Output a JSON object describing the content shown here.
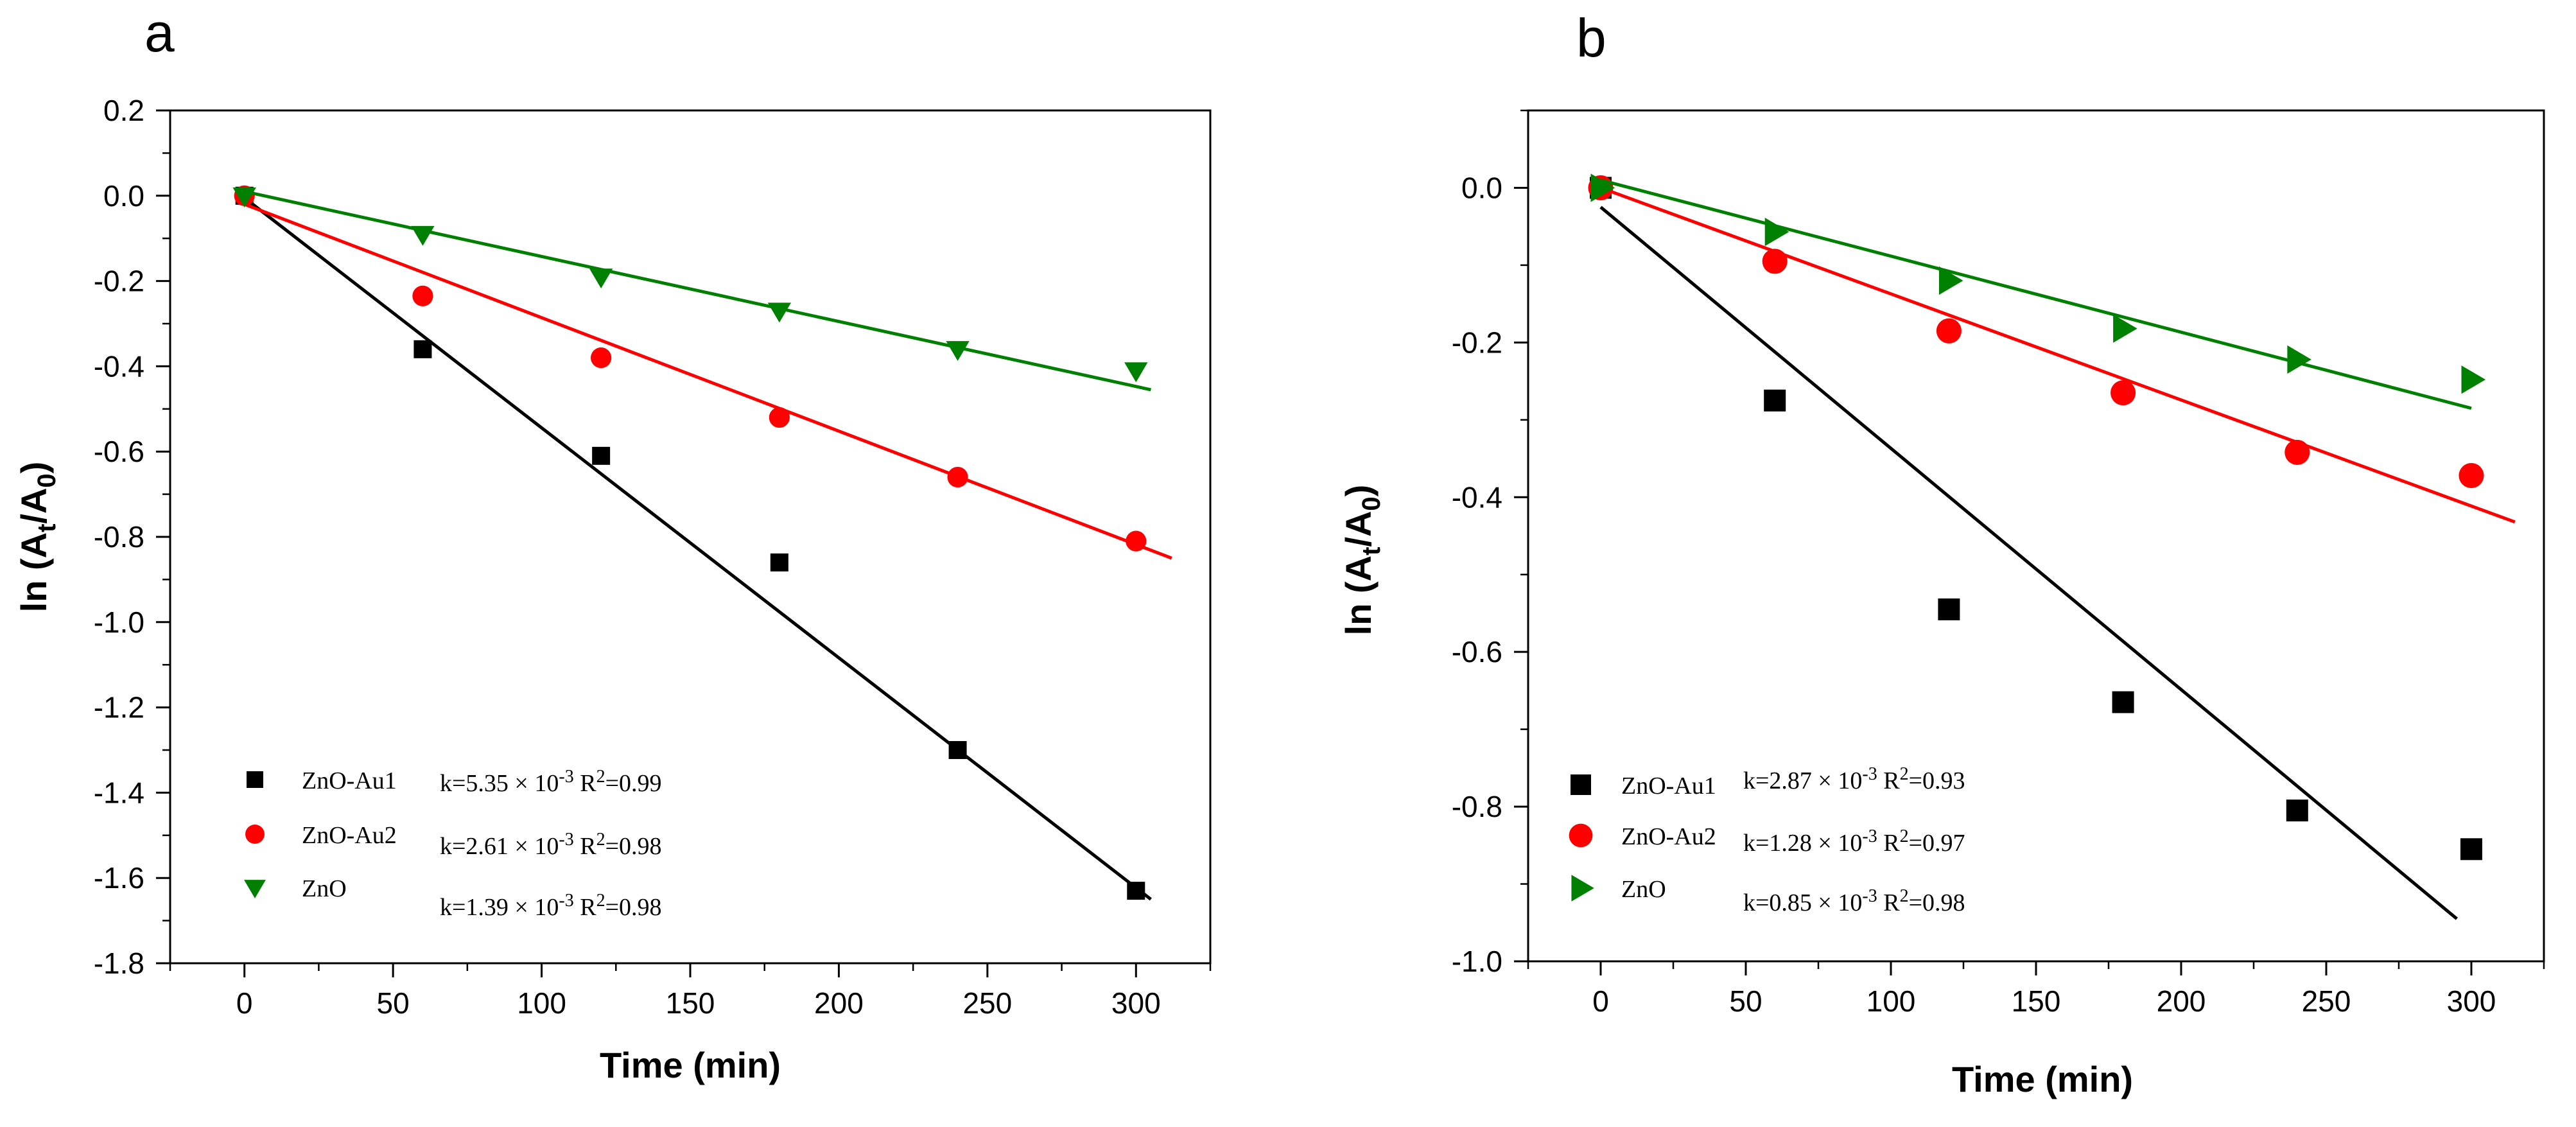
{
  "chart_data": [
    {
      "panel": "a",
      "type": "scatter",
      "xlabel": "Time (min)",
      "ylabel": "ln (A",
      "ylabel_sub1": "t",
      "ylabel_mid": "/A",
      "ylabel_sub2": "0",
      "ylabel_end": ")",
      "xlim": [
        -25,
        325
      ],
      "ylim": [
        -1.8,
        0.2
      ],
      "xticks": [
        0,
        50,
        100,
        150,
        200,
        250,
        300
      ],
      "yticks": [
        0.2,
        0.0,
        -0.2,
        -0.4,
        -0.6,
        -0.8,
        -1.0,
        -1.2,
        -1.4,
        -1.6,
        -1.8
      ],
      "ytick_labels": [
        "0.2",
        "0.0",
        "-0.2",
        "-0.4",
        "-0.6",
        "-0.8",
        "-1.0",
        "-1.2",
        "-1.4",
        "-1.6",
        "-1.8"
      ],
      "legend_position": "bottom-left",
      "series": [
        {
          "name": "ZnO-Au1",
          "marker": "square",
          "color": "#000000",
          "x": [
            0,
            60,
            120,
            180,
            240,
            300
          ],
          "y": [
            0.0,
            -0.36,
            -0.61,
            -0.86,
            -1.3,
            -1.63
          ],
          "fit": {
            "x": [
              0,
              305
            ],
            "y": [
              -0.005,
              -1.65
            ]
          },
          "stat_k": "k=5.35 × 10",
          "stat_exp": "-3",
          "stat_r": " R",
          "stat_r_exp": "2",
          "stat_end": "=0.99"
        },
        {
          "name": "ZnO-Au2",
          "marker": "circle",
          "color": "#ff0000",
          "x": [
            0,
            60,
            120,
            180,
            240,
            300
          ],
          "y": [
            0.0,
            -0.235,
            -0.38,
            -0.52,
            -0.66,
            -0.81
          ],
          "fit": {
            "x": [
              0,
              312
            ],
            "y": [
              -0.02,
              -0.85
            ]
          },
          "stat_k": "k=2.61 × 10",
          "stat_exp": "-3",
          "stat_r": " R",
          "stat_r_exp": "2",
          "stat_end": "=0.98"
        },
        {
          "name": "ZnO",
          "marker": "triangle-down",
          "color": "#008000",
          "x": [
            0,
            60,
            120,
            180,
            240,
            300
          ],
          "y": [
            0.0,
            -0.09,
            -0.19,
            -0.27,
            -0.36,
            -0.41
          ],
          "fit": {
            "x": [
              0,
              305
            ],
            "y": [
              0.01,
              -0.455
            ]
          },
          "stat_k": "k=1.39 × 10",
          "stat_exp": "-3",
          "stat_r": " R",
          "stat_r_exp": "2",
          "stat_end": "=0.98"
        }
      ]
    },
    {
      "panel": "b",
      "type": "scatter",
      "xlabel": "Time (min)",
      "ylabel": "ln (A",
      "ylabel_sub1": "t",
      "ylabel_mid": "/A",
      "ylabel_sub2": "0",
      "ylabel_end": ")",
      "xlim": [
        -25,
        325
      ],
      "ylim": [
        -1.0,
        0.1
      ],
      "xticks": [
        0,
        50,
        100,
        150,
        200,
        250,
        300
      ],
      "yticks": [
        0.0,
        -0.2,
        -0.4,
        -0.6,
        -0.8,
        -1.0
      ],
      "ytick_labels": [
        "0.0",
        "-0.2",
        "-0.4",
        "-0.6",
        "-0.8",
        "-1.0"
      ],
      "legend_position": "bottom-left",
      "series": [
        {
          "name": "ZnO-Au1",
          "marker": "square",
          "color": "#000000",
          "x": [
            0,
            60,
            120,
            180,
            240,
            300
          ],
          "y": [
            0.0,
            -0.275,
            -0.545,
            -0.665,
            -0.805,
            -0.855
          ],
          "fit": {
            "x": [
              0,
              295
            ],
            "y": [
              -0.025,
              -0.945
            ]
          },
          "stat_k": "k=2.87 × 10",
          "stat_exp": "-3",
          "stat_r": " R",
          "stat_r_exp": "2",
          "stat_end": "=0.93"
        },
        {
          "name": "ZnO-Au2",
          "marker": "circle",
          "color": "#ff0000",
          "x": [
            0,
            60,
            120,
            180,
            240,
            300
          ],
          "y": [
            0.0,
            -0.095,
            -0.185,
            -0.265,
            -0.342,
            -0.372
          ],
          "fit": {
            "x": [
              0,
              315
            ],
            "y": [
              0.0,
              -0.432
            ]
          },
          "stat_k": "k=1.28 × 10",
          "stat_exp": "-3",
          "stat_r": " R",
          "stat_r_exp": "2",
          "stat_end": "=0.97"
        },
        {
          "name": "ZnO",
          "marker": "triangle-right",
          "color": "#008000",
          "x": [
            0,
            60,
            120,
            180,
            240,
            300
          ],
          "y": [
            0.0,
            -0.057,
            -0.12,
            -0.182,
            -0.222,
            -0.248
          ],
          "fit": {
            "x": [
              0,
              300
            ],
            "y": [
              0.01,
              -0.285
            ]
          },
          "stat_k": "k=0.85 × 10",
          "stat_exp": "-3",
          "stat_r": " R",
          "stat_r_exp": "2",
          "stat_end": "=0.98"
        }
      ]
    }
  ]
}
